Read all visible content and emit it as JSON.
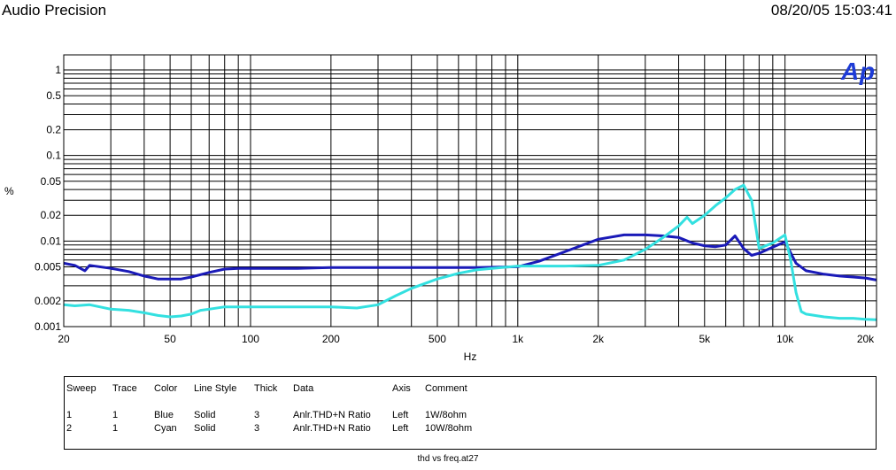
{
  "header": {
    "title": "Audio Precision",
    "timestamp": "08/20/05 15:03:41"
  },
  "logo": "Ap",
  "colors": {
    "blue": "#1a1ab8",
    "cyan": "#33e0e0",
    "logo": "#1e3cd6",
    "grid": "#000000"
  },
  "chart_data": {
    "type": "line",
    "xlabel": "Hz",
    "ylabel": "%",
    "xscale": "log",
    "yscale": "log",
    "xlim": [
      20,
      22000
    ],
    "ylim": [
      0.001,
      1.5
    ],
    "xticks": [
      20,
      50,
      100,
      200,
      500,
      1000,
      2000,
      5000,
      10000,
      20000
    ],
    "xtick_labels": [
      "20",
      "50",
      "100",
      "200",
      "500",
      "1k",
      "2k",
      "5k",
      "10k",
      "20k"
    ],
    "yticks": [
      0.001,
      0.002,
      0.005,
      0.01,
      0.02,
      0.05,
      0.1,
      0.2,
      0.5,
      1
    ],
    "ytick_labels": [
      "0.001",
      "0.002",
      "0.005",
      "0.01",
      "0.02",
      "0.05",
      "0.1",
      "0.2",
      "0.5",
      "1"
    ],
    "grid": true,
    "series": [
      {
        "name": "1W/8ohm",
        "color": "#1a1ab8",
        "x": [
          20,
          22,
          24,
          25,
          30,
          35,
          40,
          45,
          50,
          55,
          60,
          70,
          80,
          90,
          100,
          150,
          200,
          300,
          400,
          500,
          700,
          1000,
          1200,
          1500,
          2000,
          2500,
          3000,
          3500,
          4000,
          4500,
          5000,
          5500,
          6000,
          6500,
          7000,
          7500,
          8000,
          9000,
          10000,
          11000,
          12000,
          14000,
          16000,
          18000,
          20000,
          22000
        ],
        "y": [
          0.0055,
          0.0052,
          0.0045,
          0.0052,
          0.0048,
          0.0044,
          0.0039,
          0.0036,
          0.0036,
          0.0036,
          0.0038,
          0.0043,
          0.0047,
          0.0048,
          0.0048,
          0.0048,
          0.0049,
          0.0049,
          0.0049,
          0.0049,
          0.0049,
          0.005,
          0.0058,
          0.0075,
          0.0105,
          0.0118,
          0.0118,
          0.0115,
          0.011,
          0.0095,
          0.0088,
          0.0086,
          0.009,
          0.0115,
          0.0082,
          0.0068,
          0.0072,
          0.0085,
          0.0098,
          0.0055,
          0.0045,
          0.0041,
          0.0039,
          0.0038,
          0.0037,
          0.0035
        ]
      },
      {
        "name": "10W/8ohm",
        "color": "#33e0e0",
        "x": [
          20,
          22,
          25,
          30,
          35,
          40,
          45,
          50,
          55,
          60,
          65,
          70,
          80,
          90,
          100,
          150,
          200,
          250,
          300,
          350,
          400,
          500,
          600,
          700,
          800,
          1000,
          1500,
          2000,
          2500,
          3000,
          3500,
          4000,
          4300,
          4500,
          5000,
          5500,
          6000,
          6500,
          7000,
          7500,
          8000,
          9000,
          10000,
          10500,
          11000,
          11500,
          12000,
          14000,
          16000,
          18000,
          20000,
          22000
        ],
        "y": [
          0.0018,
          0.00175,
          0.0018,
          0.0016,
          0.00155,
          0.00145,
          0.00135,
          0.0013,
          0.00133,
          0.0014,
          0.00155,
          0.0016,
          0.0017,
          0.0017,
          0.0017,
          0.0017,
          0.0017,
          0.00165,
          0.0018,
          0.0023,
          0.0028,
          0.0036,
          0.0042,
          0.0046,
          0.0048,
          0.0051,
          0.0051,
          0.0052,
          0.006,
          0.008,
          0.011,
          0.015,
          0.019,
          0.016,
          0.02,
          0.026,
          0.032,
          0.04,
          0.045,
          0.03,
          0.0082,
          0.0095,
          0.0118,
          0.006,
          0.0025,
          0.0015,
          0.0014,
          0.0013,
          0.00125,
          0.00125,
          0.00122,
          0.0012
        ]
      }
    ]
  },
  "legend": {
    "headers": [
      "Sweep",
      "Trace",
      "Color",
      "Line Style",
      "Thick",
      "Data",
      "Axis",
      "Comment"
    ],
    "rows": [
      [
        "1",
        "1",
        "Blue",
        "Solid",
        "3",
        "Anlr.THD+N Ratio",
        "Left",
        "1W/8ohm"
      ],
      [
        "2",
        "1",
        "Cyan",
        "Solid",
        "3",
        "Anlr.THD+N Ratio",
        "Left",
        "10W/8ohm"
      ]
    ]
  },
  "footer": "thd vs freq.at27"
}
